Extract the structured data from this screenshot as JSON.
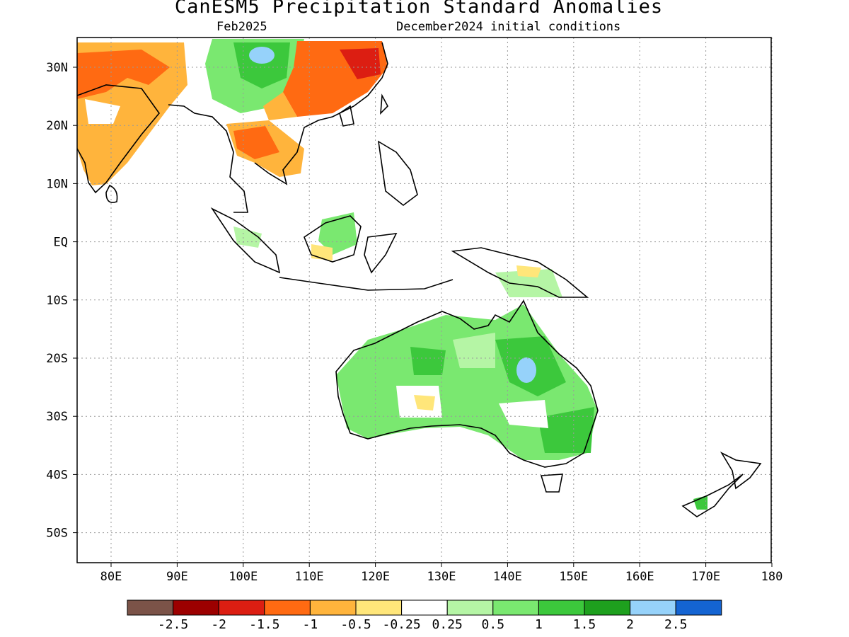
{
  "title": "CanESM5 Precipitation Standard Anomalies",
  "subtitle_left": "Feb2025",
  "subtitle_right": "December2024 initial conditions",
  "lon_ticks": [
    "80E",
    "90E",
    "100E",
    "110E",
    "120E",
    "130E",
    "140E",
    "150E",
    "160E",
    "170E",
    "180"
  ],
  "lat_ticks": [
    "30N",
    "20N",
    "10N",
    "EQ",
    "10S",
    "20S",
    "30S",
    "40S",
    "50S"
  ],
  "colorbar": {
    "labels": [
      "-2.5",
      "-2",
      "-1.5",
      "-1",
      "-0.5",
      "-0.25",
      "0.25",
      "0.5",
      "1",
      "1.5",
      "2",
      "2.5"
    ],
    "colors": [
      "#7b5348",
      "#9c0000",
      "#dc1e12",
      "#ff6a12",
      "#ffb43c",
      "#ffe67a",
      "#ffffff",
      "#b5f5a5",
      "#7ae870",
      "#3cc83c",
      "#1ea01e",
      "#96d2fa",
      "#1464d2"
    ]
  },
  "colors": {
    "land_outline": "#000000",
    "grid": "#9a9a9a"
  }
}
